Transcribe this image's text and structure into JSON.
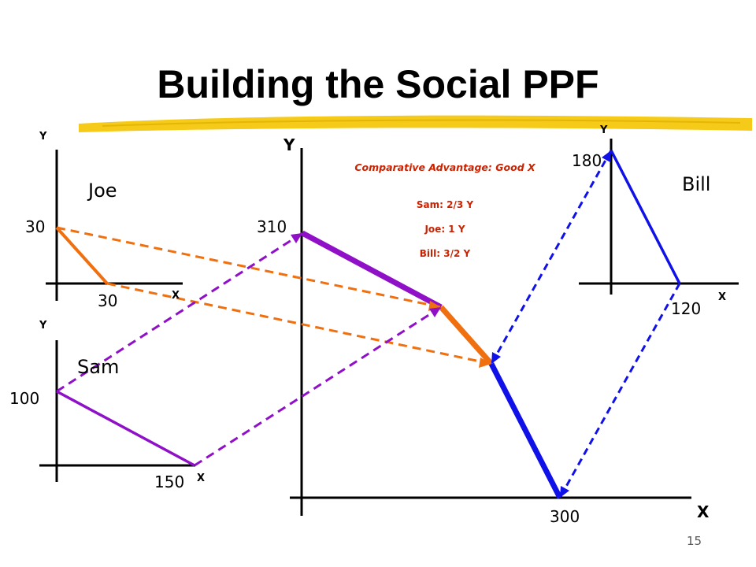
{
  "slide": {
    "title": "Building the Social PPF",
    "page_number": "15"
  },
  "joe": {
    "name": "Joe",
    "y_axis": "Y",
    "x_axis": "X",
    "y_intercept": "30",
    "x_intercept": "30"
  },
  "sam": {
    "name": "Sam",
    "y_axis": "Y",
    "x_axis": "X",
    "y_intercept": "100",
    "x_intercept": "150"
  },
  "bill": {
    "name": "Bill",
    "y_axis": "Y",
    "x_axis": "X",
    "y_intercept": "180",
    "x_intercept": "120"
  },
  "social": {
    "y_axis": "Y",
    "x_axis": "X",
    "y_intercept": "310",
    "x_intercept": "300"
  },
  "comparative_advantage": {
    "title": "Comparative Advantage: Good X",
    "lines": [
      "Sam: 2/3 Y",
      "Joe: 1 Y",
      "Bill: 3/2 Y"
    ]
  },
  "colors": {
    "joe": "#f07010",
    "sam": "#9010c8",
    "bill": "#1010e8",
    "highlight": "#f5c400",
    "annotation": "#cc2200"
  }
}
